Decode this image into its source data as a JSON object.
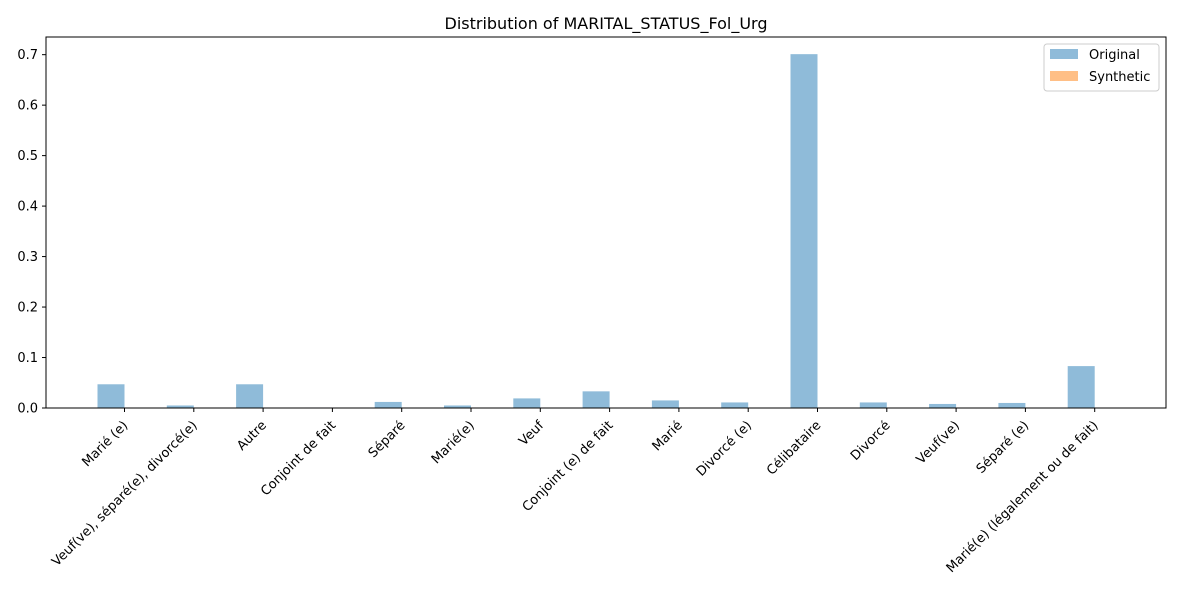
{
  "chart_data": {
    "type": "bar",
    "title": "Distribution of MARITAL_STATUS_Fol_Urg",
    "xlabel": "",
    "ylabel": "",
    "ylim": [
      0,
      0.735
    ],
    "yticks": [
      "0.0",
      "0.1",
      "0.2",
      "0.3",
      "0.4",
      "0.5",
      "0.6",
      "0.7"
    ],
    "categories": [
      "Marié (e)",
      "Veuf(ve), séparé(e), divorcé(e)",
      "Autre",
      "Conjoint de fait",
      "Séparé",
      "Marié(e)",
      "Veuf",
      "Conjoint (e) de fait",
      "Marié",
      "Divorcé (e)",
      "Célibataire",
      "Divorcé",
      "Veuf(ve)",
      "Séparé (e)",
      "Marié(e) (légalement ou de fait)"
    ],
    "series": [
      {
        "name": "Original",
        "color": "#1f77b4",
        "values": [
          0.047,
          0.005,
          0.047,
          0.001,
          0.012,
          0.005,
          0.019,
          0.033,
          0.015,
          0.011,
          0.701,
          0.011,
          0.008,
          0.01,
          0.083
        ]
      },
      {
        "name": "Synthetic",
        "color": "#ff7f0e",
        "values": [
          0,
          0,
          0,
          0,
          0,
          0,
          0,
          0,
          0,
          0,
          0,
          0,
          0,
          0,
          0
        ]
      }
    ],
    "legend": "top-right",
    "grid": false
  }
}
